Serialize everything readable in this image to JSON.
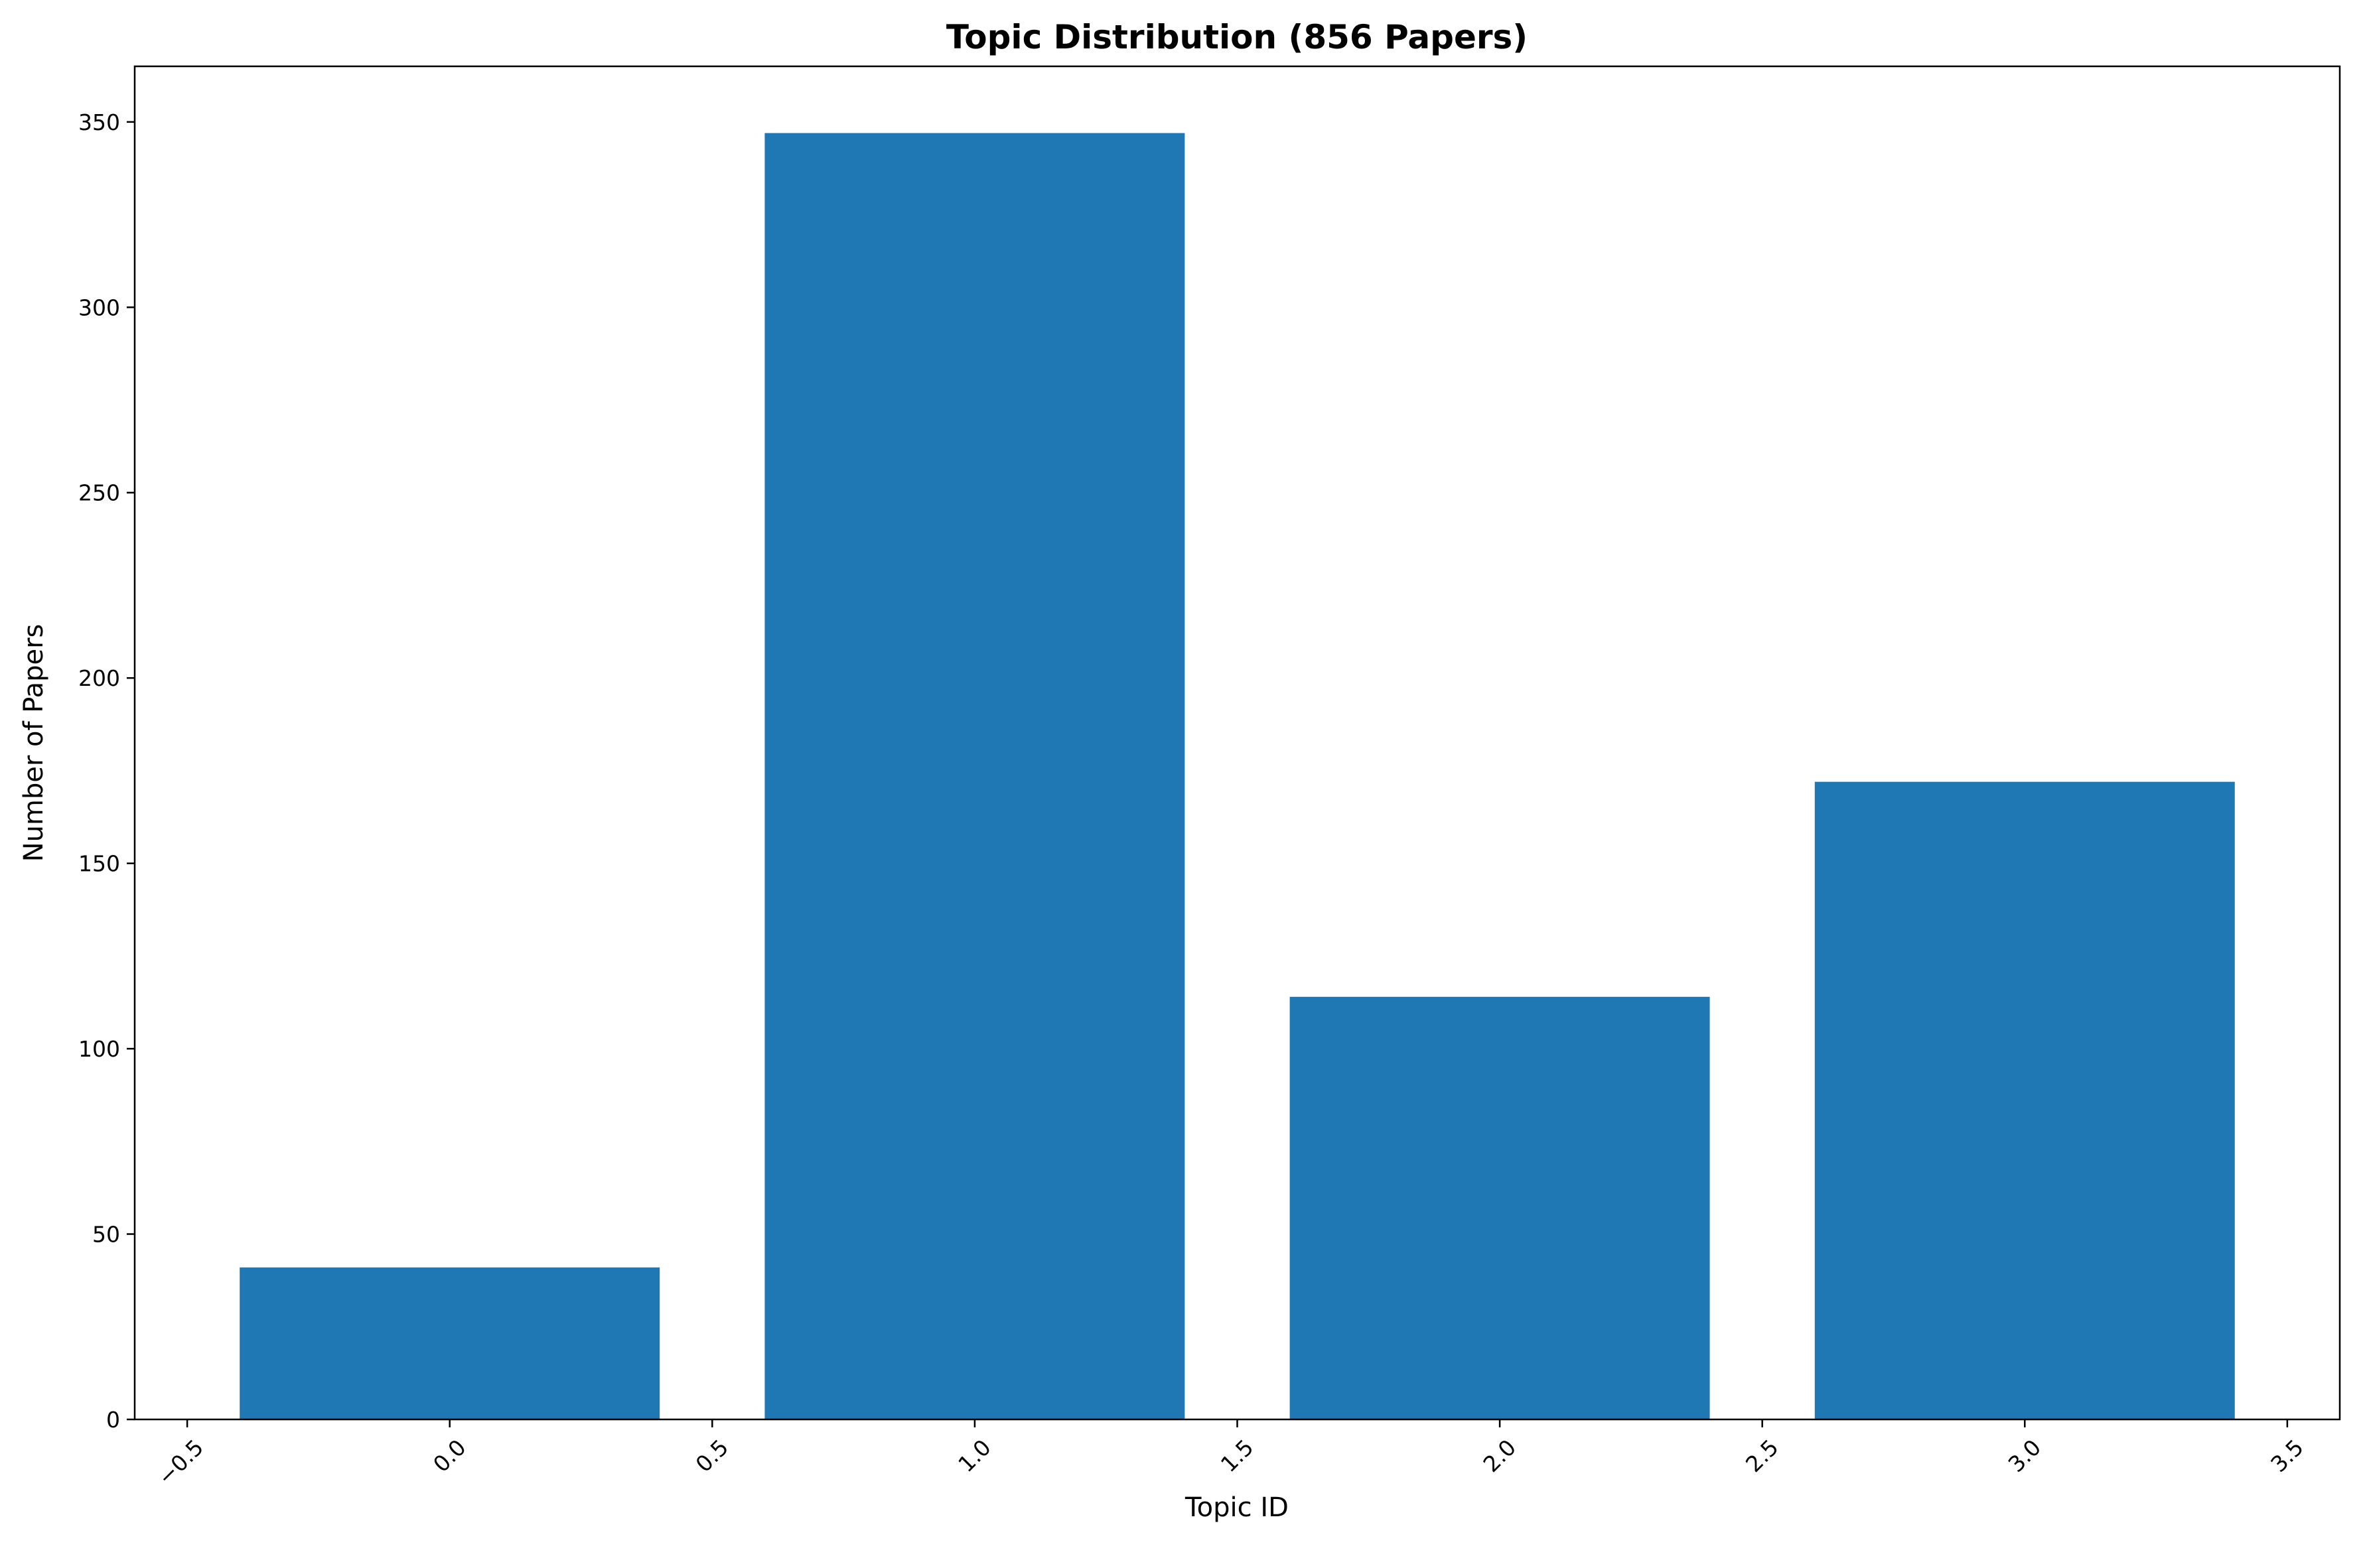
{
  "chart_data": {
    "type": "bar",
    "title": "Topic Distribution (856 Papers)",
    "xlabel": "Topic ID",
    "ylabel": "Number of Papers",
    "x": [
      0,
      1,
      2,
      3
    ],
    "values": [
      41,
      347,
      114,
      172
    ],
    "bar_width": 0.8,
    "xlim": [
      -0.6,
      3.6
    ],
    "ylim": [
      0,
      365
    ],
    "xticks": [
      -0.5,
      0.0,
      0.5,
      1.0,
      1.5,
      2.0,
      2.5,
      3.0,
      3.5
    ],
    "xtick_labels": [
      "−0.5",
      "0.0",
      "0.5",
      "1.0",
      "1.5",
      "2.0",
      "2.5",
      "3.0",
      "3.5"
    ],
    "yticks": [
      0,
      50,
      100,
      150,
      200,
      250,
      300,
      350
    ],
    "ytick_labels": [
      "0",
      "50",
      "100",
      "150",
      "200",
      "250",
      "300",
      "350"
    ],
    "bar_color": "#1f77b4",
    "grid": false,
    "legend": "none"
  }
}
